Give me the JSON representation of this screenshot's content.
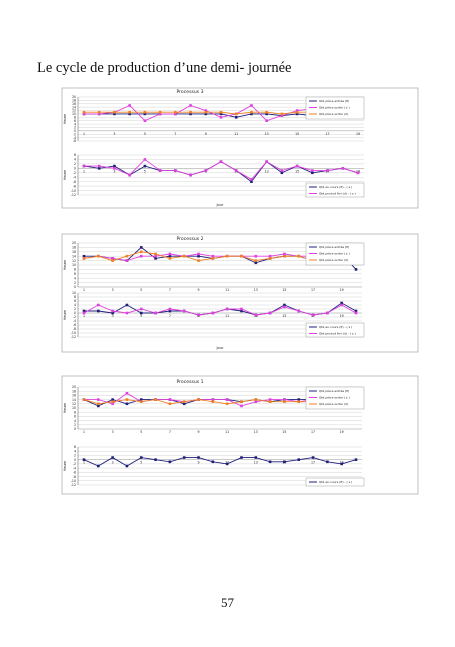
{
  "document": {
    "title": "Le cycle de production d’une demi- journée",
    "page_number": "57"
  },
  "chart_data": [
    {
      "type": "line",
      "title": "Processus 3",
      "panels": [
        {
          "ylabel": "Heure",
          "ylim": [
            -6,
            20
          ],
          "yticks": [
            "20",
            "18",
            "16",
            "14",
            "12",
            "10",
            "8",
            "6",
            "4",
            "2",
            "0",
            "-2",
            "-4",
            "-6"
          ],
          "grid": true,
          "series": [
            {
              "name": "Qté pièce entrée (E)",
              "color": "#1f1f7a",
              "values": [
                10,
                10,
                10,
                10,
                10,
                10,
                10,
                10,
                10,
                10,
                8,
                10,
                10,
                9,
                10,
                9,
                9,
                10,
                9
              ]
            },
            {
              "name": "Qté pièce sortie ( s )",
              "color": "#e040e0",
              "values": [
                10,
                10,
                11,
                15,
                6,
                10,
                10,
                15,
                12,
                8,
                10,
                15,
                6,
                9,
                12,
                13,
                10,
                10,
                11
              ]
            },
            {
              "name": "Qté pièce sortie (d)",
              "color": "#f08020",
              "values": [
                11,
                11,
                11,
                11,
                11,
                11,
                11,
                11,
                11,
                11,
                10,
                11,
                11,
                10,
                11,
                11,
                10,
                10,
                10
              ]
            }
          ]
        },
        {
          "ylabel": "Heure",
          "ylim": [
            -12,
            6
          ],
          "yticks": [
            "6",
            "4",
            "2",
            "0",
            "-2",
            "-4",
            "-6",
            "-8",
            "-10",
            "-12"
          ],
          "grid": true,
          "series": [
            {
              "name": "Qté en-cours (E) - ( s )",
              "color": "#1f1f7a",
              "values": [
                1,
                0,
                1,
                -3,
                1,
                -1,
                -1,
                -3,
                -1,
                3,
                -1,
                -6,
                3,
                -2,
                1,
                -2,
                -1,
                0,
                -2
              ]
            },
            {
              "name": "Qté produit fini (d) - ( s )",
              "color": "#e040e0",
              "values": [
                1,
                1,
                0,
                -3,
                4,
                -1,
                -1,
                -3,
                -1,
                3,
                -1,
                -5,
                3,
                -1,
                1,
                -1,
                -1,
                0,
                -2
              ]
            }
          ]
        }
      ],
      "xlabel": "Jour",
      "categories": [
        "1",
        "",
        "3",
        "",
        "5",
        "",
        "7",
        "",
        "9",
        "",
        "11",
        "",
        "13",
        "",
        "15",
        "",
        "17",
        "",
        "19"
      ]
    },
    {
      "type": "line",
      "title": "Processus 2",
      "panels": [
        {
          "ylabel": "Heure",
          "ylim": [
            0,
            20
          ],
          "yticks": [
            "20",
            "18",
            "16",
            "14",
            "12",
            "10",
            "8",
            "6",
            "4",
            "2",
            "0"
          ],
          "grid": true,
          "series": [
            {
              "name": "Qté pièce entrée (E)",
              "color": "#1f1f7a",
              "values": [
                14,
                14,
                13,
                12,
                18,
                13,
                14,
                14,
                14,
                13,
                14,
                14,
                11,
                13,
                14,
                14,
                12,
                13,
                15,
                8
              ]
            },
            {
              "name": "Qté pièce sortie ( s )",
              "color": "#e040e0",
              "values": [
                13,
                14,
                13,
                12,
                14,
                14,
                15,
                14,
                15,
                14,
                14,
                14,
                14,
                14,
                15,
                14,
                14,
                14,
                15,
                12
              ]
            },
            {
              "name": "Qté pièce sortie (d)",
              "color": "#f08020",
              "values": [
                13,
                14,
                12,
                14,
                16,
                15,
                13,
                14,
                12,
                13,
                14,
                14,
                12,
                13,
                14,
                14,
                12,
                13,
                15,
                11
              ]
            }
          ]
        },
        {
          "ylabel": "Heure",
          "ylim": [
            -12,
            10
          ],
          "yticks": [
            "10",
            "8",
            "6",
            "4",
            "2",
            "0",
            "-2",
            "-4",
            "-6",
            "-8",
            "-10",
            "-12"
          ],
          "grid": true,
          "series": [
            {
              "name": "Qté en-cours (E) - ( s )",
              "color": "#1f1f7a",
              "values": [
                1,
                1,
                0,
                4,
                0,
                0,
                1,
                1,
                -1,
                0,
                2,
                1,
                -1,
                0,
                4,
                1,
                -1,
                0,
                5,
                1
              ]
            },
            {
              "name": "Qté produit fini (d) - ( s )",
              "color": "#e040e0",
              "values": [
                0,
                4,
                1,
                0,
                2,
                0,
                2,
                1,
                -1,
                0,
                2,
                2,
                -1,
                0,
                3,
                1,
                -1,
                0,
                4,
                0
              ]
            }
          ]
        }
      ],
      "xlabel": "Jour",
      "categories": [
        "1",
        "",
        "3",
        "",
        "5",
        "",
        "7",
        "",
        "9",
        "",
        "11",
        "",
        "13",
        "",
        "15",
        "",
        "17",
        "",
        "19",
        ""
      ]
    },
    {
      "type": "line",
      "title": "Processus 1",
      "panels": [
        {
          "ylabel": "Heure",
          "ylim": [
            0,
            20
          ],
          "yticks": [
            "20",
            "18",
            "16",
            "14",
            "12",
            "10",
            "8",
            "6",
            "4",
            "2",
            "0"
          ],
          "grid": true,
          "series": [
            {
              "name": "Qté pièce entrée (E)",
              "color": "#1f1f7a",
              "values": [
                14,
                11,
                14,
                12,
                14,
                14,
                14,
                12,
                14,
                14,
                14,
                13,
                14,
                13,
                14,
                14,
                14,
                14,
                14,
                13
              ]
            },
            {
              "name": "Qté pièce sortie ( s )",
              "color": "#e040e0",
              "values": [
                14,
                14,
                12,
                17,
                13,
                14,
                14,
                13,
                14,
                14,
                14,
                11,
                13,
                14,
                14,
                13,
                14,
                13,
                14,
                13
              ]
            },
            {
              "name": "Qté pièce sortie (d)",
              "color": "#f08020",
              "values": [
                14,
                12,
                13,
                14,
                13,
                14,
                12,
                13,
                14,
                13,
                12,
                13,
                14,
                13,
                13,
                13,
                13,
                13,
                12,
                13
              ]
            }
          ]
        },
        {
          "ylabel": "Heure",
          "ylim": [
            -12,
            6
          ],
          "yticks": [
            "6",
            "4",
            "2",
            "0",
            "-2",
            "-4",
            "-6",
            "-8",
            "-10",
            "-12"
          ],
          "grid": true,
          "series": [
            {
              "name": "Qté en-cours (E) - ( s )",
              "color": "#1f1f7a",
              "values": [
                0,
                -3,
                1,
                -3,
                1,
                0,
                -1,
                1,
                1,
                -1,
                -2,
                1,
                1,
                -1,
                -1,
                0,
                1,
                -1,
                -2,
                0
              ]
            }
          ]
        }
      ],
      "categories": [
        "1",
        "",
        "3",
        "",
        "5",
        "",
        "7",
        "",
        "9",
        "",
        "11",
        "",
        "13",
        "",
        "15",
        "",
        "17",
        "",
        "19",
        ""
      ]
    }
  ]
}
